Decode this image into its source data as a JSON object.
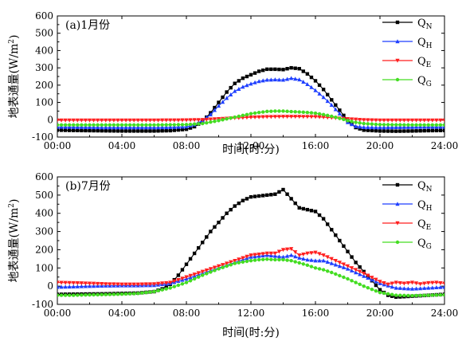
{
  "chart_data": [
    {
      "type": "line",
      "panel_label": "(a)1月份",
      "xlabel": "时间(时:分)",
      "ylabel": "地表通量(W/m²)",
      "ylabel_main": "地表通量",
      "ylabel_unit": "(W/m",
      "ylabel_sup": "2",
      "ylabel_close": ")",
      "ylim": [
        -100,
        600
      ],
      "yticks": [
        "-100",
        "0",
        "100",
        "200",
        "300",
        "400",
        "500",
        "600"
      ],
      "xlim_hours": [
        0,
        24
      ],
      "xticks": [
        "00:00",
        "04:00",
        "08:00",
        "12:00",
        "16:00",
        "20:00",
        "24:00"
      ],
      "legend_position": "top-right",
      "series": [
        {
          "name": "QN",
          "name_main": "Q",
          "name_sub": "N",
          "color": "#000000",
          "marker": "square",
          "x": [
            0,
            1,
            2,
            3,
            4,
            5,
            6,
            7,
            8,
            8.5,
            9,
            9.5,
            10,
            10.5,
            11,
            11.5,
            12,
            12.5,
            13,
            13.5,
            14,
            14.5,
            15,
            15.5,
            16,
            16.5,
            17,
            17.5,
            18,
            18.5,
            19,
            20,
            21,
            22,
            23,
            24
          ],
          "values": [
            -60,
            -62,
            -63,
            -64,
            -65,
            -65,
            -65,
            -63,
            -55,
            -40,
            -10,
            40,
            100,
            160,
            210,
            240,
            260,
            280,
            292,
            292,
            290,
            300,
            295,
            265,
            225,
            175,
            115,
            55,
            -5,
            -45,
            -60,
            -65,
            -66,
            -65,
            -63,
            -62
          ]
        },
        {
          "name": "QH",
          "name_main": "Q",
          "name_sub": "H",
          "color": "#1f3fff",
          "marker": "triangle-up",
          "x": [
            0,
            1,
            2,
            3,
            4,
            5,
            6,
            7,
            8,
            8.5,
            9,
            9.5,
            10,
            10.5,
            11,
            11.5,
            12,
            12.5,
            13,
            13.5,
            14,
            14.5,
            15,
            15.5,
            16,
            16.5,
            17,
            17.5,
            18,
            18.5,
            19,
            20,
            21,
            22,
            23,
            24
          ],
          "values": [
            -42,
            -43,
            -44,
            -45,
            -45,
            -45,
            -45,
            -44,
            -40,
            -28,
            -5,
            30,
            80,
            125,
            165,
            190,
            208,
            222,
            230,
            232,
            230,
            240,
            232,
            205,
            170,
            130,
            85,
            35,
            -15,
            -38,
            -44,
            -45,
            -44,
            -43,
            -42,
            -42
          ]
        },
        {
          "name": "QE",
          "name_main": "Q",
          "name_sub": "E",
          "color": "#ff1f1f",
          "marker": "triangle-down",
          "x": [
            0,
            2,
            4,
            6,
            8,
            9,
            10,
            11,
            12,
            13,
            14,
            15,
            16,
            17,
            18,
            19,
            20,
            22,
            24
          ],
          "values": [
            -3,
            -3,
            -3,
            -3,
            -2,
            0,
            5,
            10,
            14,
            17,
            18,
            18,
            17,
            12,
            5,
            -1,
            -3,
            -3,
            -3
          ]
        },
        {
          "name": "QG",
          "name_main": "Q",
          "name_sub": "G",
          "color": "#44dd22",
          "marker": "circle",
          "x": [
            0,
            2,
            4,
            6,
            8,
            9,
            10,
            10.5,
            11,
            11.5,
            12,
            12.5,
            13,
            13.5,
            14,
            14.5,
            15,
            15.5,
            16,
            16.5,
            17,
            17.5,
            18,
            18.5,
            19,
            20,
            22,
            24
          ],
          "values": [
            -30,
            -30,
            -30,
            -30,
            -28,
            -22,
            -5,
            5,
            15,
            25,
            35,
            42,
            48,
            50,
            50,
            47,
            45,
            42,
            38,
            30,
            20,
            8,
            -5,
            -15,
            -22,
            -28,
            -30,
            -30
          ]
        }
      ]
    },
    {
      "type": "line",
      "panel_label": "(b)7月份",
      "xlabel": "时间(时:分)",
      "ylabel": "地表通量(W/m²)",
      "ylabel_main": "地表通量",
      "ylabel_unit": "(W/m",
      "ylabel_sup": "2",
      "ylabel_close": ")",
      "ylim": [
        -100,
        600
      ],
      "yticks": [
        "-100",
        "0",
        "100",
        "200",
        "300",
        "400",
        "500",
        "600"
      ],
      "xlim_hours": [
        0,
        24
      ],
      "xticks": [
        "00:00",
        "04:00",
        "08:00",
        "12:00",
        "16:00",
        "20:00",
        "24:00"
      ],
      "legend_position": "top-right",
      "series": [
        {
          "name": "QN",
          "name_main": "Q",
          "name_sub": "N",
          "color": "#000000",
          "marker": "square",
          "x": [
            0,
            1,
            2,
            3,
            4,
            5,
            6,
            6.5,
            7,
            7.5,
            8,
            8.5,
            9,
            9.5,
            10,
            10.5,
            11,
            11.5,
            12,
            12.5,
            13,
            13.5,
            14,
            14.5,
            15,
            15.5,
            16,
            16.5,
            17,
            17.5,
            18,
            18.5,
            19,
            19.5,
            20,
            20.5,
            21,
            22,
            23,
            24
          ],
          "values": [
            -45,
            -44,
            -43,
            -42,
            -40,
            -38,
            -30,
            -15,
            10,
            60,
            120,
            180,
            240,
            300,
            350,
            400,
            440,
            470,
            490,
            495,
            500,
            505,
            530,
            480,
            430,
            420,
            410,
            370,
            310,
            250,
            190,
            130,
            80,
            30,
            -20,
            -50,
            -60,
            -55,
            -50,
            -45
          ]
        },
        {
          "name": "QH",
          "name_main": "Q",
          "name_sub": "H",
          "color": "#1f3fff",
          "marker": "triangle-up",
          "x": [
            0,
            1,
            2,
            3,
            4,
            5,
            6,
            7,
            8,
            9,
            10,
            11,
            12,
            12.5,
            13,
            13.5,
            14,
            14.5,
            15,
            15.5,
            16,
            16.5,
            17,
            18,
            19,
            20,
            21,
            22,
            23,
            24
          ],
          "values": [
            -5,
            -3,
            0,
            2,
            3,
            3,
            5,
            15,
            40,
            70,
            100,
            130,
            160,
            165,
            170,
            165,
            160,
            170,
            155,
            145,
            140,
            140,
            125,
            95,
            55,
            15,
            -10,
            -15,
            -10,
            -5
          ]
        },
        {
          "name": "QE",
          "name_main": "Q",
          "name_sub": "E",
          "color": "#ff1f1f",
          "marker": "triangle-down",
          "x": [
            0,
            1,
            2,
            3,
            4,
            5,
            6,
            7,
            8,
            9,
            10,
            11,
            12,
            12.5,
            13,
            13.5,
            14,
            14.5,
            15,
            15.5,
            16,
            16.5,
            17,
            18,
            19,
            20,
            20.5,
            21,
            21.5,
            22,
            22.5,
            23,
            23.5,
            24
          ],
          "values": [
            20,
            18,
            15,
            12,
            10,
            10,
            12,
            20,
            50,
            80,
            110,
            140,
            170,
            175,
            180,
            180,
            200,
            205,
            170,
            180,
            185,
            170,
            150,
            110,
            70,
            25,
            10,
            20,
            15,
            20,
            12,
            18,
            20,
            15
          ]
        },
        {
          "name": "QG",
          "name_main": "Q",
          "name_sub": "G",
          "color": "#44dd22",
          "marker": "circle",
          "x": [
            0,
            1,
            2,
            3,
            4,
            5,
            6,
            7,
            8,
            9,
            10,
            11,
            12,
            12.5,
            13,
            13.5,
            14,
            14.5,
            15,
            15.5,
            16,
            16.5,
            17,
            18,
            19,
            20,
            21,
            22,
            23,
            24
          ],
          "values": [
            -50,
            -50,
            -48,
            -46,
            -44,
            -40,
            -30,
            -10,
            20,
            60,
            95,
            125,
            140,
            145,
            148,
            145,
            145,
            140,
            128,
            115,
            100,
            90,
            75,
            40,
            0,
            -35,
            -50,
            -52,
            -50,
            -48
          ]
        }
      ]
    }
  ]
}
